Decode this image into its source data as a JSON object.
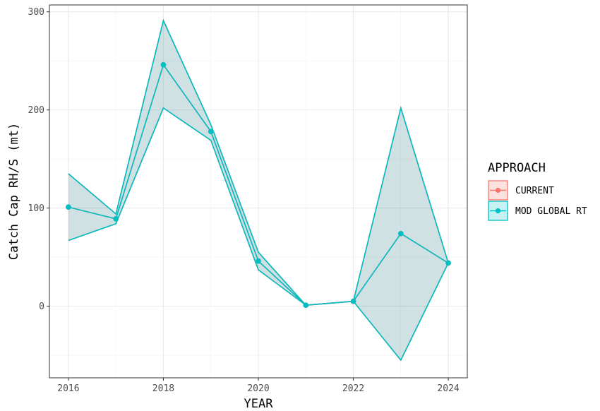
{
  "chart_data": {
    "type": "line",
    "xlabel": "YEAR",
    "ylabel": "Catch Cap RH/S (mt)",
    "xlim": [
      2015.6,
      2024.4
    ],
    "ylim": [
      -73,
      307
    ],
    "x_ticks": [
      2016,
      2018,
      2020,
      2022,
      2024
    ],
    "y_ticks": [
      0,
      100,
      200,
      300
    ],
    "grid": true,
    "legend": {
      "title": "APPROACH",
      "position": "right"
    },
    "series": [
      {
        "name": "CURRENT",
        "color": "#F8766D",
        "x": [
          2016,
          2017,
          2018,
          2019,
          2020,
          2021,
          2022,
          2023,
          2024
        ],
        "y": [
          101,
          89,
          246,
          178,
          46,
          1,
          5,
          74,
          44
        ],
        "lower": [
          67,
          84,
          202,
          169,
          37,
          1,
          5,
          -55,
          44
        ],
        "upper": [
          135,
          94,
          291,
          185,
          55,
          1,
          5,
          202,
          44
        ]
      },
      {
        "name": "MOD GLOBAL RT",
        "color": "#00BFC4",
        "x": [
          2016,
          2017,
          2018,
          2019,
          2020,
          2021,
          2022,
          2023,
          2024
        ],
        "y": [
          101,
          89,
          246,
          178,
          46,
          1,
          5,
          74,
          44
        ],
        "lower": [
          67,
          84,
          202,
          169,
          37,
          1,
          5,
          -55,
          44
        ],
        "upper": [
          135,
          94,
          291,
          185,
          55,
          1,
          5,
          202,
          44
        ]
      }
    ]
  }
}
